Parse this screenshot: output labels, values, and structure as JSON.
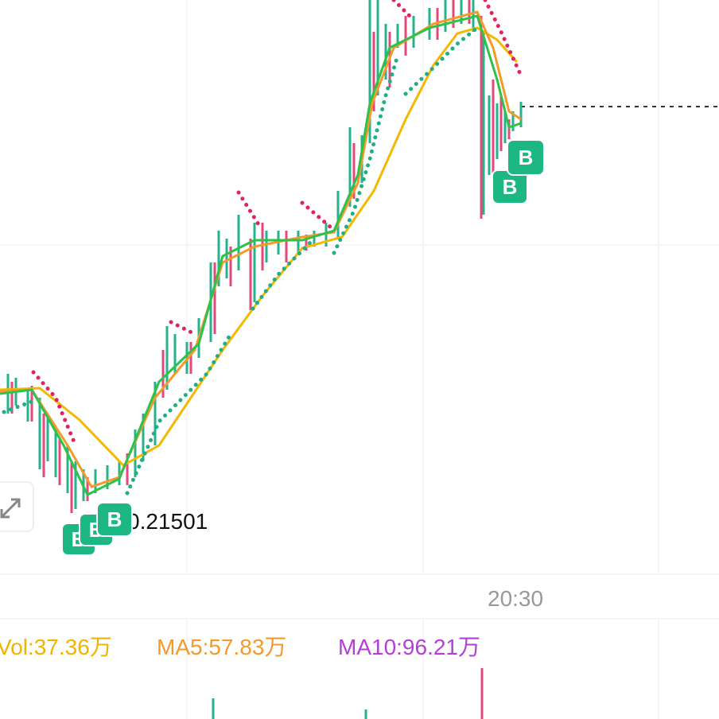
{
  "price_label": "0.21501",
  "time_label": "20:30",
  "indicators": {
    "vol": "Vol:37.36万",
    "ma5": "MA5:57.83万",
    "ma10": "MA10:96.21万"
  },
  "buy_markers": [
    "B",
    "B",
    "B",
    "B",
    "B"
  ]
}
